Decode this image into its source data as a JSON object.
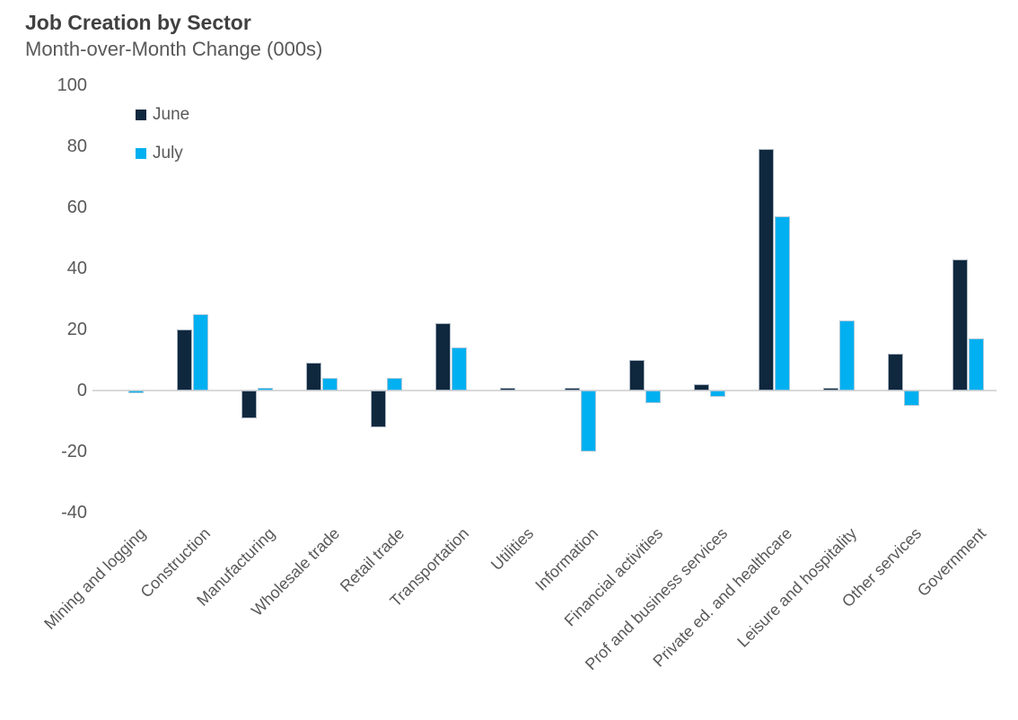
{
  "header": {
    "title": "Job Creation by Sector",
    "subtitle": "Month-over-Month Change (000s)"
  },
  "legend": {
    "position": "top-left",
    "items": [
      {
        "label": "June",
        "color": "#10283E"
      },
      {
        "label": "July",
        "color": "#00B0F0"
      }
    ]
  },
  "chart_data": {
    "type": "bar",
    "title": "Job Creation by Sector",
    "subtitle": "Month-over-Month Change (000s)",
    "categories": [
      "Mining and logging",
      "Construction",
      "Manufacturing",
      "Wholesale trade",
      "Retail trade",
      "Transportation",
      "Utilities",
      "Information",
      "Financial activities",
      "Prof and business services",
      "Private ed. and healthcare",
      "Leisure and hospitality",
      "Other services",
      "Government"
    ],
    "series": [
      {
        "name": "June",
        "color": "#10283E",
        "values": [
          0,
          20,
          -9,
          9,
          -12,
          22,
          1,
          1,
          10,
          2,
          79,
          1,
          12,
          43
        ]
      },
      {
        "name": "July",
        "color": "#00B0F0",
        "values": [
          -1,
          25,
          1,
          4,
          4,
          14,
          0,
          -20,
          -4,
          -2,
          57,
          23,
          -5,
          17
        ]
      }
    ],
    "xlabel": "",
    "ylabel": "",
    "ylim": [
      -40,
      100
    ],
    "y_ticks": [
      100,
      80,
      60,
      40,
      20,
      0,
      -20,
      -40
    ],
    "grid": false,
    "axis_line_color": "#D9D9D9",
    "text_color": "#595959",
    "title_color": "#404040",
    "legend_position": "top-left"
  }
}
